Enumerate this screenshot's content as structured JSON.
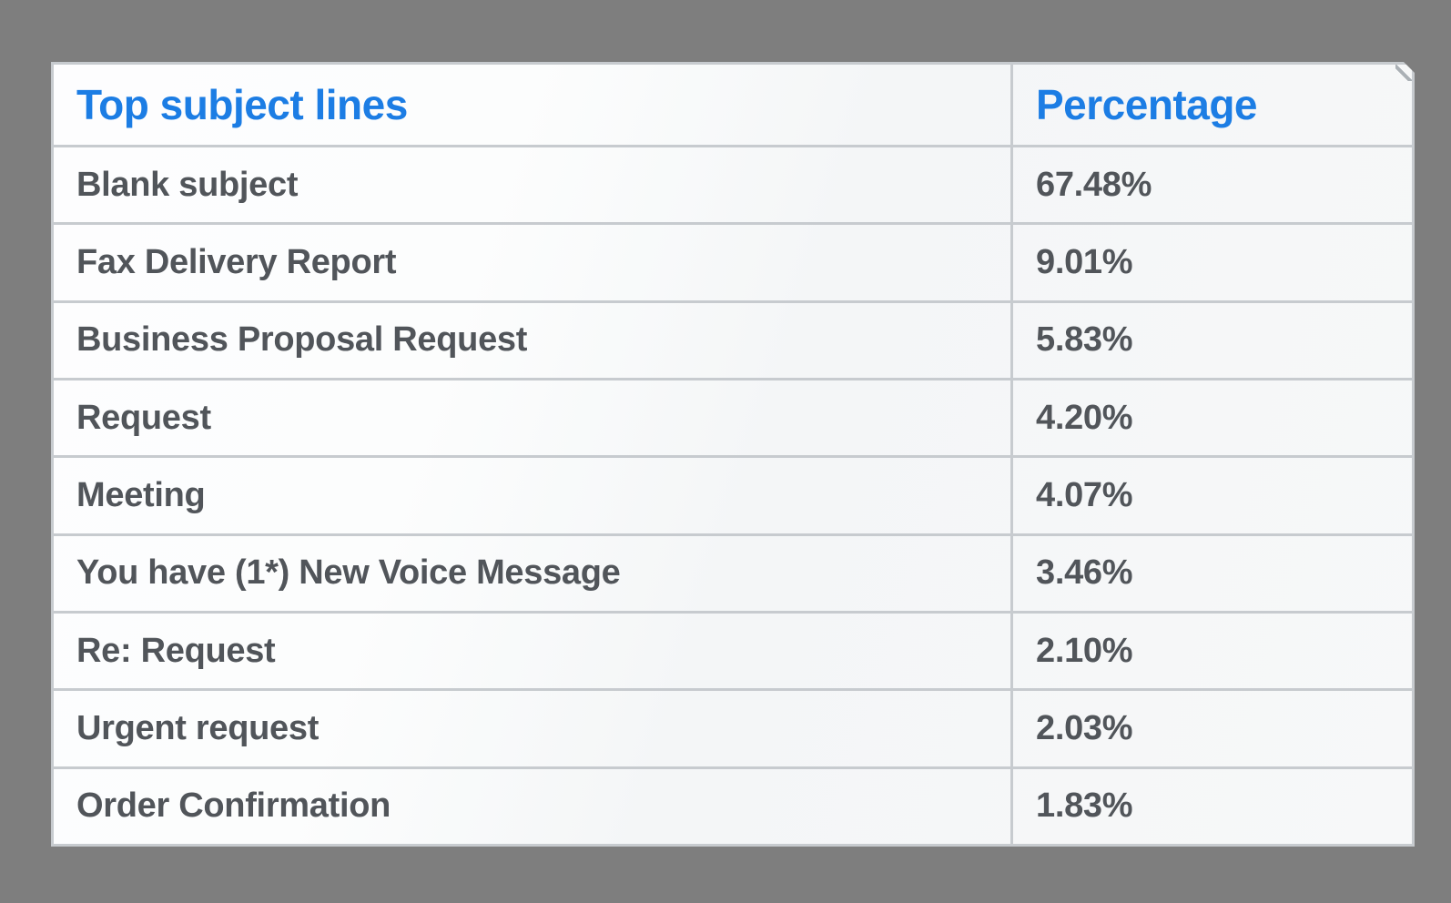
{
  "chart_data": {
    "type": "table",
    "title": "",
    "columns": [
      "Top subject lines",
      "Percentage"
    ],
    "rows": [
      [
        "Blank subject",
        "67.48%"
      ],
      [
        "Fax Delivery Report",
        "9.01%"
      ],
      [
        "Business Proposal Request",
        "5.83%"
      ],
      [
        "Request",
        "4.20%"
      ],
      [
        "Meeting",
        "4.07%"
      ],
      [
        "You have (1*) New Voice Message",
        "3.46%"
      ],
      [
        "Re: Request",
        "2.10%"
      ],
      [
        "Urgent request",
        "2.03%"
      ],
      [
        "Order Confirmation",
        "1.83%"
      ]
    ],
    "values": [
      67.48,
      9.01,
      5.83,
      4.2,
      4.07,
      3.46,
      2.1,
      2.03,
      1.83
    ],
    "layout": {
      "legend": "none",
      "grid": "row-and-column-dividers"
    }
  },
  "colors": {
    "header_text": "#1c7de4",
    "body_text": "#51555a",
    "divider": "#c7cbcf",
    "card_background": "#f9fafb",
    "page_background": "#7e7e7e"
  }
}
